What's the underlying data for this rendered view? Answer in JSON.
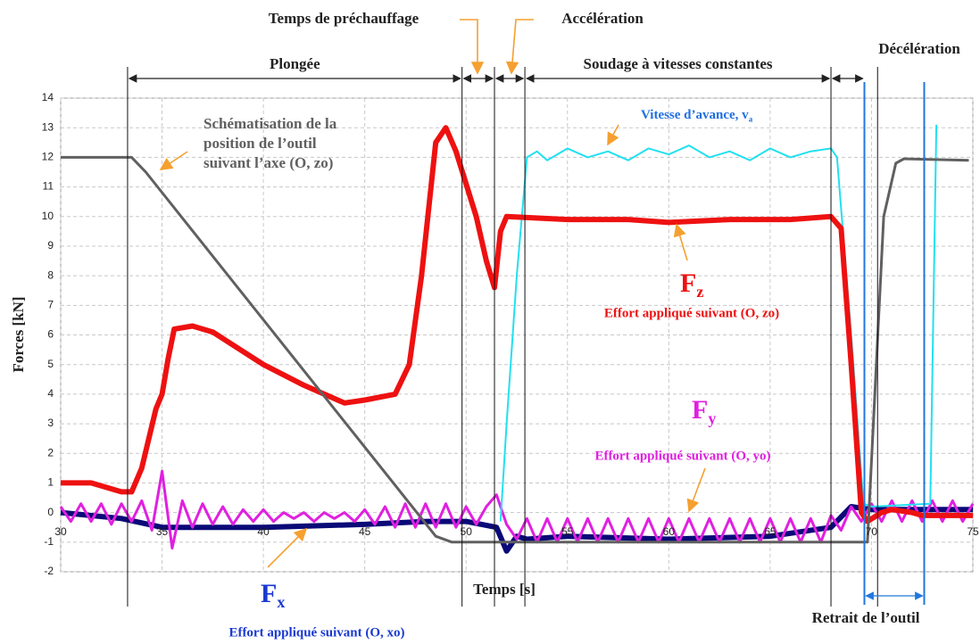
{
  "chart_data": {
    "type": "line",
    "xlabel": "Temps [s]",
    "ylabel": "Forces [kN]",
    "xlim": [
      30,
      75
    ],
    "ylim": [
      -2,
      14
    ],
    "xticks": [
      30,
      35,
      40,
      45,
      50,
      55,
      60,
      65,
      70,
      75
    ],
    "yticks": [
      -2,
      -1,
      0,
      1,
      2,
      3,
      4,
      5,
      6,
      7,
      8,
      9,
      10,
      11,
      12,
      13,
      14
    ],
    "grid": true,
    "series": [
      {
        "name": "Fx",
        "label": "Effort appliqué suivant (O, xo)",
        "color": "#0a0a78",
        "x": [
          30,
          33,
          35,
          36,
          40,
          45,
          48,
          50,
          51.5,
          52,
          52.5,
          53,
          55,
          60,
          65,
          68,
          69,
          70,
          72,
          75
        ],
        "values": [
          0,
          -0.2,
          -0.5,
          -0.5,
          -0.5,
          -0.4,
          -0.3,
          -0.3,
          -0.5,
          -1.3,
          -0.8,
          -0.9,
          -0.8,
          -0.9,
          -0.8,
          -0.5,
          0.2,
          0.1,
          0.1,
          0.1
        ]
      },
      {
        "name": "Fy",
        "label": "Effort appliqué suivant (O, yo)",
        "color": "#e020e0",
        "x": [
          30,
          30.5,
          31,
          31.5,
          32,
          32.5,
          33,
          33.5,
          34,
          34.5,
          35,
          35.5,
          36,
          36.5,
          37,
          37.5,
          38,
          38.5,
          39,
          39.5,
          40,
          40.5,
          41,
          41.5,
          42,
          42.5,
          43,
          43.5,
          44,
          44.5,
          45,
          45.5,
          46,
          46.5,
          47,
          47.5,
          48,
          48.5,
          49,
          49.5,
          50,
          50.5,
          51,
          51.5,
          52,
          52.5,
          53,
          53.5,
          54,
          54.5,
          55,
          55.5,
          56,
          56.5,
          57,
          57.5,
          58,
          58.5,
          59,
          59.5,
          60,
          60.5,
          61,
          61.5,
          62,
          62.5,
          63,
          63.5,
          64,
          64.5,
          65,
          65.5,
          66,
          66.5,
          67,
          67.5,
          68,
          68.5,
          69,
          69.5,
          70,
          70.5,
          71,
          71.5,
          72,
          72.5,
          73,
          73.5,
          74,
          74.5,
          75
        ],
        "values": [
          0.2,
          -0.3,
          0.3,
          -0.3,
          0.3,
          -0.4,
          0.3,
          -0.3,
          0.4,
          -0.6,
          1.4,
          -1.2,
          0.4,
          -0.5,
          0.3,
          -0.4,
          0.2,
          -0.4,
          0.1,
          -0.3,
          0.1,
          -0.3,
          0,
          -0.2,
          0,
          -0.3,
          0,
          -0.2,
          0,
          -0.3,
          0.1,
          -0.4,
          0.2,
          -0.5,
          0.3,
          -0.5,
          0.3,
          -0.5,
          0.3,
          -0.5,
          0.2,
          -0.4,
          0.2,
          0.6,
          -0.4,
          -0.9,
          -0.2,
          -1,
          -0.2,
          -1,
          -0.2,
          -1,
          -0.2,
          -1,
          -0.2,
          -1,
          -0.2,
          -1,
          -0.2,
          -1,
          -0.2,
          -1,
          -0.2,
          -1,
          -0.2,
          -1,
          -0.2,
          -1,
          -0.2,
          -1,
          -0.2,
          -1,
          -0.2,
          -1,
          -0.2,
          -1,
          -0.1,
          -0.6,
          0.2,
          -0.3,
          0.3,
          -0.3,
          0.4,
          -0.3,
          0.4,
          -0.3,
          0.4,
          -0.3,
          0.4,
          -0.3,
          0.3
        ]
      },
      {
        "name": "Vitesse d’avance, va",
        "color": "#22e0f0",
        "x": [
          51.7,
          52,
          52.5,
          53,
          53.5,
          54,
          55,
          56,
          57,
          58,
          59,
          60,
          61,
          62,
          63,
          64,
          65,
          66,
          67,
          68,
          68.3,
          69,
          69.6,
          70,
          72.9,
          73.2
        ],
        "values": [
          -0.3,
          3,
          8,
          12,
          12.2,
          11.9,
          12.3,
          12,
          12.2,
          11.9,
          12.3,
          12.1,
          12.4,
          12,
          12.2,
          11.9,
          12.3,
          12,
          12.2,
          12.3,
          12,
          6,
          0.3,
          0.2,
          0.3,
          13.1
        ]
      },
      {
        "name": "Fz",
        "label": "Effort appliqué suivant (O, zo)",
        "color": "#ee1111",
        "x": [
          30,
          31.5,
          33,
          33.5,
          34,
          34.7,
          35,
          35.3,
          35.6,
          36.5,
          37.5,
          40,
          42,
          44,
          45,
          46.5,
          47.2,
          47.8,
          48.5,
          49,
          49.5,
          50.5,
          51,
          51.4,
          51.7,
          52,
          55,
          58,
          60,
          63,
          66,
          68,
          68.5,
          69,
          69.5,
          69.8,
          70.5,
          71,
          72,
          72.5,
          75
        ],
        "values": [
          1,
          1,
          0.7,
          0.7,
          1.5,
          3.5,
          4,
          5.2,
          6.2,
          6.3,
          6.1,
          5,
          4.3,
          3.7,
          3.8,
          4,
          5,
          8,
          12.5,
          13,
          12.2,
          10,
          8.5,
          7.6,
          9.5,
          10,
          9.9,
          9.9,
          9.8,
          9.9,
          9.9,
          10,
          9.6,
          5,
          0,
          -0.3,
          0,
          0.1,
          0,
          -0.1,
          -0.1
        ]
      },
      {
        "name_lines": [
          "Schématisation de la",
          "position de l’outil",
          "suivant l’axe (O, zo)"
        ],
        "color": "#606060",
        "x": [
          30,
          33.5,
          34.2,
          48.5,
          49.3,
          69.8,
          70.6,
          71.2,
          71.6,
          74.8
        ],
        "values": [
          12,
          12,
          11.5,
          -0.8,
          -1,
          -1,
          10,
          11.8,
          11.95,
          11.9
        ]
      }
    ],
    "phases": [
      {
        "label": "Plongée",
        "start": 33.3,
        "end": 49.8
      },
      {
        "label": "Temps de préchauffage",
        "start": 49.8,
        "end": 51.4
      },
      {
        "label": "Accélération",
        "start": 51.4,
        "end": 52.9
      },
      {
        "label": "Soudage à vitesses constantes",
        "start": 52.9,
        "end": 68
      },
      {
        "label": "Décélération",
        "start": 68,
        "end": 69.65
      },
      {
        "label": "Retrait de l’outil",
        "start": 69.65,
        "end": 72.6
      }
    ],
    "markers": [
      33.3,
      49.8,
      51.4,
      52.9,
      68,
      70.3
    ],
    "blue_markers": [
      69.65,
      72.6
    ]
  }
}
